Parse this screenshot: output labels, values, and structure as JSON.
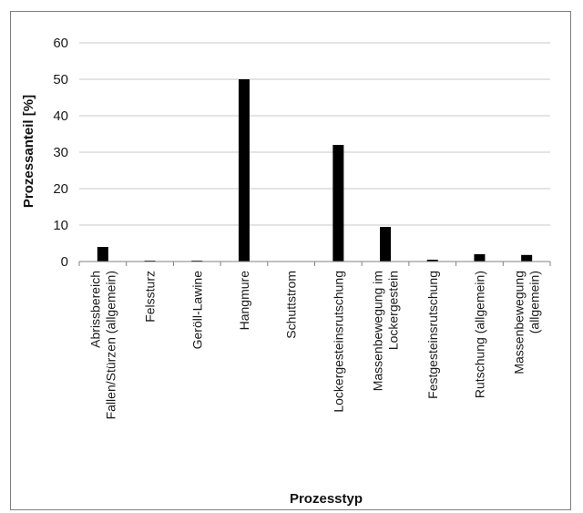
{
  "chart_data": {
    "type": "bar",
    "xlabel": "Prozesstyp",
    "ylabel": "Prozessanteil [%]",
    "ylim": [
      0,
      60
    ],
    "yticks": [
      0,
      10,
      20,
      30,
      40,
      50,
      60
    ],
    "grid": true,
    "categories": [
      [
        "Abrissbereich",
        "Fallen/Stürzen (allgemein)"
      ],
      [
        "Felssturz"
      ],
      [
        "Geröll-Lawine"
      ],
      [
        "Hangmure"
      ],
      [
        "Schuttstrom"
      ],
      [
        "Lockergesteinsrutschung"
      ],
      [
        "Massenbewegung im",
        "Lockergestein"
      ],
      [
        "Festgesteinsrutschung"
      ],
      [
        "Rutschung (allgemein)"
      ],
      [
        "Massenbewegung",
        "(allgemein)"
      ]
    ],
    "values": [
      4,
      0.2,
      0.2,
      50,
      0,
      32,
      9.5,
      0.5,
      2,
      1.8
    ],
    "colors": {
      "bar": "#000000",
      "grid": "#c8c8c8",
      "axis": "#808080"
    }
  }
}
